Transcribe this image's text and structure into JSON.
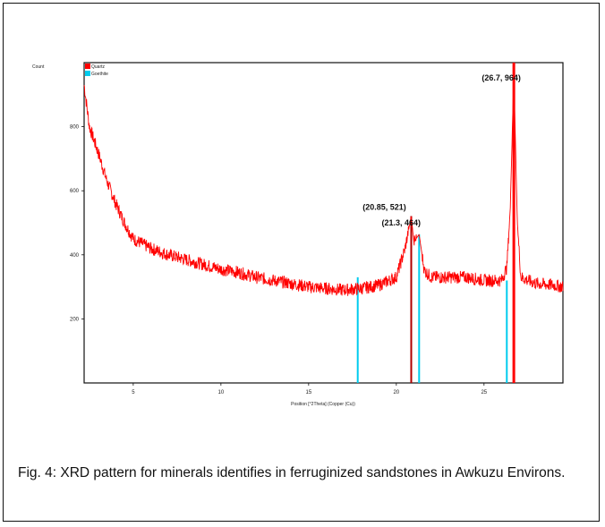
{
  "caption": "Fig. 4: XRD pattern for minerals identifies in ferruginized sandstones in Awkuzu Environs.",
  "chart_data": {
    "type": "line",
    "ylabel": "Count",
    "xlabel": "Position [°2Theta] (Copper (Cu))",
    "x_ticks": [
      5,
      10,
      15,
      20,
      25
    ],
    "x_tick_labels": [
      "5",
      "10",
      "15",
      "20",
      "25"
    ],
    "y_ticks": [
      200,
      400,
      600,
      800
    ],
    "y_tick_labels": [
      "200",
      "400",
      "600",
      "800"
    ],
    "xlim": [
      2.2,
      29.5
    ],
    "ylim": [
      0,
      1000
    ],
    "legend": [
      {
        "name": "Quartz",
        "color": "#ff0000"
      },
      {
        "name": "Goethite",
        "color": "#00ccee"
      }
    ],
    "legend_position": "top-left",
    "series": [
      {
        "name": "XRD pattern",
        "color": "#ff0000",
        "x": [
          2.2,
          2.5,
          3.0,
          3.5,
          4.0,
          4.5,
          5.0,
          6.0,
          7.0,
          8.0,
          9.0,
          10.0,
          11.0,
          12.0,
          13.0,
          14.0,
          15.0,
          16.0,
          17.0,
          18.0,
          19.0,
          20.0,
          20.5,
          20.85,
          21.0,
          21.3,
          21.6,
          22.0,
          23.0,
          24.0,
          25.0,
          26.0,
          26.3,
          26.5,
          26.7,
          26.9,
          27.1,
          27.5,
          28.0,
          29.0,
          29.5
        ],
        "y": [
          930,
          800,
          720,
          630,
          560,
          500,
          450,
          420,
          400,
          385,
          370,
          355,
          345,
          330,
          320,
          310,
          300,
          295,
          290,
          295,
          305,
          330,
          420,
          521,
          440,
          464,
          350,
          330,
          330,
          330,
          320,
          320,
          360,
          550,
          964,
          500,
          330,
          320,
          310,
          305,
          300
        ]
      }
    ],
    "peak_lines": [
      {
        "mineral": "Goethite",
        "x": 17.8,
        "height": 330,
        "color": "#00ccee"
      },
      {
        "mineral": "Quartz",
        "x": 20.85,
        "height": 521,
        "color": "#b00000"
      },
      {
        "mineral": "Goethite",
        "x": 21.3,
        "height": 464,
        "color": "#00ccee"
      },
      {
        "mineral": "Goethite",
        "x": 26.3,
        "height": 320,
        "color": "#00ccee"
      },
      {
        "mineral": "Quartz",
        "x": 26.7,
        "height": 1000,
        "color": "#ff0000"
      }
    ],
    "annotations": [
      {
        "x": 26.7,
        "y": 964,
        "text": "(26.7, 964)"
      },
      {
        "x": 20.85,
        "y": 521,
        "text": "(20.85, 521)"
      },
      {
        "x": 21.3,
        "y": 464,
        "text": "(21.3, 464)"
      }
    ]
  }
}
